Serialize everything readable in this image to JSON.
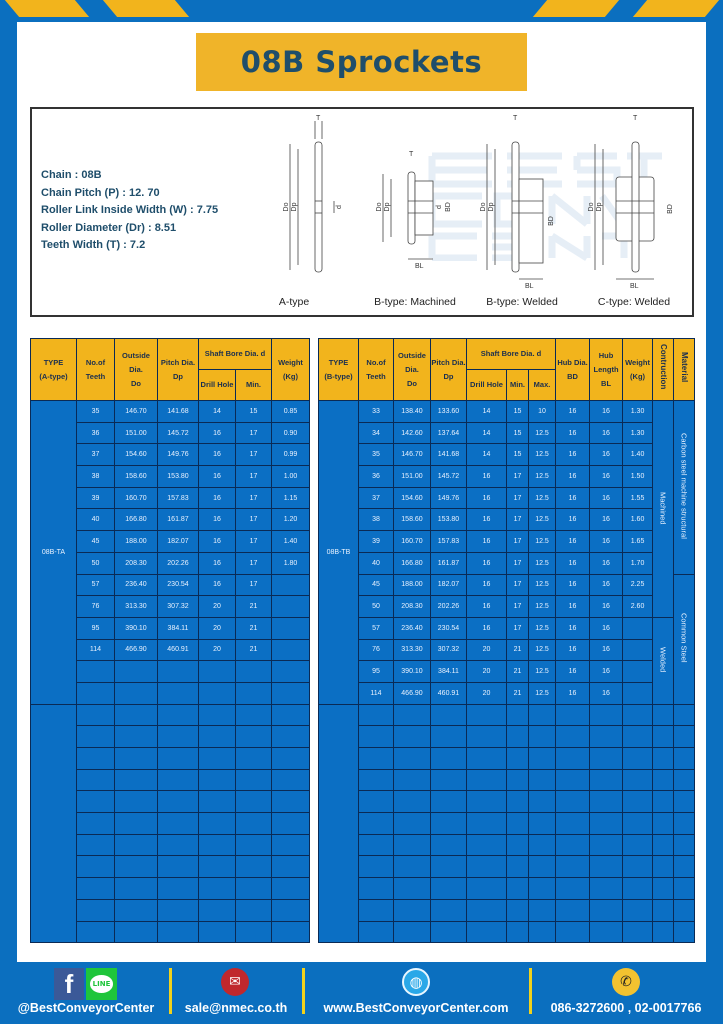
{
  "colors": {
    "brand_blue": "#0b6fbf",
    "accent_yellow": "#f0b429",
    "table_cell_blue": "#0b6fc4",
    "title_text": "#1f4e6b"
  },
  "title": "08B Sprockets",
  "specs": {
    "chain": "Chain  : 08B",
    "pitch": "Chain Pitch (P)  :  12. 70",
    "link_width": "Roller Link Inside Width (W)  :  7.75",
    "roller_dia": "Roller Diameter (Dr)  : 8.51",
    "teeth_width": "Teeth Width (T)  :  7.2"
  },
  "watermark": [
    "BEST",
    "CONVEYOR",
    "CENTER"
  ],
  "diagram_labels": {
    "T": "T",
    "Do": "Do",
    "Dp": "Dp",
    "d": "d",
    "BD": "BD",
    "BL": "BL"
  },
  "captions": [
    "A-type",
    "B-type: Machined",
    "B-type: Welded",
    "C-type: Welded"
  ],
  "table_a": {
    "headers": {
      "type": "TYPE",
      "type_sub": "(A-type)",
      "teeth": "No.of",
      "teeth_sub": "Teeth",
      "do": "Outside",
      "do_2": "Dia.",
      "do_3": "Do",
      "dp": "Pitch Dia.",
      "dp_sub": "Dp",
      "bore": "Shaft Bore Dia. d",
      "drill": "Drill Hole",
      "min": "Min.",
      "weight": "Weight",
      "weight_sub": "(Kg)"
    },
    "type_label": "08B-TA",
    "rows": [
      [
        "35",
        "146.70",
        "141.68",
        "14",
        "15",
        "0.85"
      ],
      [
        "36",
        "151.00",
        "145.72",
        "16",
        "17",
        "0.90"
      ],
      [
        "37",
        "154.60",
        "149.76",
        "16",
        "17",
        "0.99"
      ],
      [
        "38",
        "158.60",
        "153.80",
        "16",
        "17",
        "1.00"
      ],
      [
        "39",
        "160.70",
        "157.83",
        "16",
        "17",
        "1.15"
      ],
      [
        "40",
        "166.80",
        "161.87",
        "16",
        "17",
        "1.20"
      ],
      [
        "45",
        "188.00",
        "182.07",
        "16",
        "17",
        "1.40"
      ],
      [
        "50",
        "208.30",
        "202.26",
        "16",
        "17",
        "1.80"
      ],
      [
        "57",
        "236.40",
        "230.54",
        "16",
        "17",
        ""
      ],
      [
        "76",
        "313.30",
        "307.32",
        "20",
        "21",
        ""
      ],
      [
        "95",
        "390.10",
        "384.11",
        "20",
        "21",
        ""
      ],
      [
        "114",
        "466.90",
        "460.91",
        "20",
        "21",
        ""
      ]
    ]
  },
  "table_b": {
    "headers": {
      "type": "TYPE",
      "type_sub": "(B-type)",
      "teeth": "No.of",
      "teeth_sub": "Teeth",
      "do": "Outside",
      "do_2": "Dia.",
      "do_3": "Do",
      "dp": "Pitch Dia.",
      "dp_sub": "Dp",
      "bore": "Shaft Bore Dia. d",
      "drill": "Drill Hole",
      "min": "Min.",
      "max": "Max.",
      "bd": "Hub Dia.",
      "bd_sub": "BD",
      "bl": "Hub",
      "bl_2": "Length",
      "bl_3": "BL",
      "weight": "Weight",
      "weight_sub": "(Kg)",
      "construction": "Contruction",
      "material": "Material"
    },
    "type_label": "08B-TB",
    "construction": {
      "machined": "Machined",
      "welded": "Welded"
    },
    "material": {
      "carbon": "Carbon steel  machine structural",
      "common": "Common Steel"
    },
    "rows": [
      [
        "33",
        "138.40",
        "133.60",
        "14",
        "15",
        "10",
        "16",
        "16",
        "1.30"
      ],
      [
        "34",
        "142.60",
        "137.64",
        "14",
        "15",
        "12.5",
        "16",
        "16",
        "1.30"
      ],
      [
        "35",
        "146.70",
        "141.68",
        "14",
        "15",
        "12.5",
        "16",
        "16",
        "1.40"
      ],
      [
        "36",
        "151.00",
        "145.72",
        "16",
        "17",
        "12.5",
        "16",
        "16",
        "1.50"
      ],
      [
        "37",
        "154.60",
        "149.76",
        "16",
        "17",
        "12.5",
        "16",
        "16",
        "1.55"
      ],
      [
        "38",
        "158.60",
        "153.80",
        "16",
        "17",
        "12.5",
        "16",
        "16",
        "1.60"
      ],
      [
        "39",
        "160.70",
        "157.83",
        "16",
        "17",
        "12.5",
        "16",
        "16",
        "1.65"
      ],
      [
        "40",
        "166.80",
        "161.87",
        "16",
        "17",
        "12.5",
        "16",
        "16",
        "1.70"
      ],
      [
        "45",
        "188.00",
        "182.07",
        "16",
        "17",
        "12.5",
        "16",
        "16",
        "2.25"
      ],
      [
        "50",
        "208.30",
        "202.26",
        "16",
        "17",
        "12.5",
        "16",
        "16",
        "2.60"
      ],
      [
        "57",
        "236.40",
        "230.54",
        "16",
        "17",
        "12.5",
        "16",
        "16",
        ""
      ],
      [
        "76",
        "313.30",
        "307.32",
        "20",
        "21",
        "12.5",
        "16",
        "16",
        ""
      ],
      [
        "95",
        "390.10",
        "384.11",
        "20",
        "21",
        "12.5",
        "16",
        "16",
        ""
      ],
      [
        "114",
        "466.90",
        "460.91",
        "20",
        "21",
        "12.5",
        "16",
        "16",
        ""
      ]
    ]
  },
  "footer": {
    "social": "@BestConveyorCenter",
    "line_icon_text": "LINE",
    "email": "sale@nmec.co.th",
    "website": "www.BestConveyorCenter.com",
    "phone": "086-3272600 , 02-0017766",
    "icons": [
      "facebook-icon",
      "line-icon",
      "email-icon",
      "globe-icon",
      "phone-icon"
    ]
  }
}
